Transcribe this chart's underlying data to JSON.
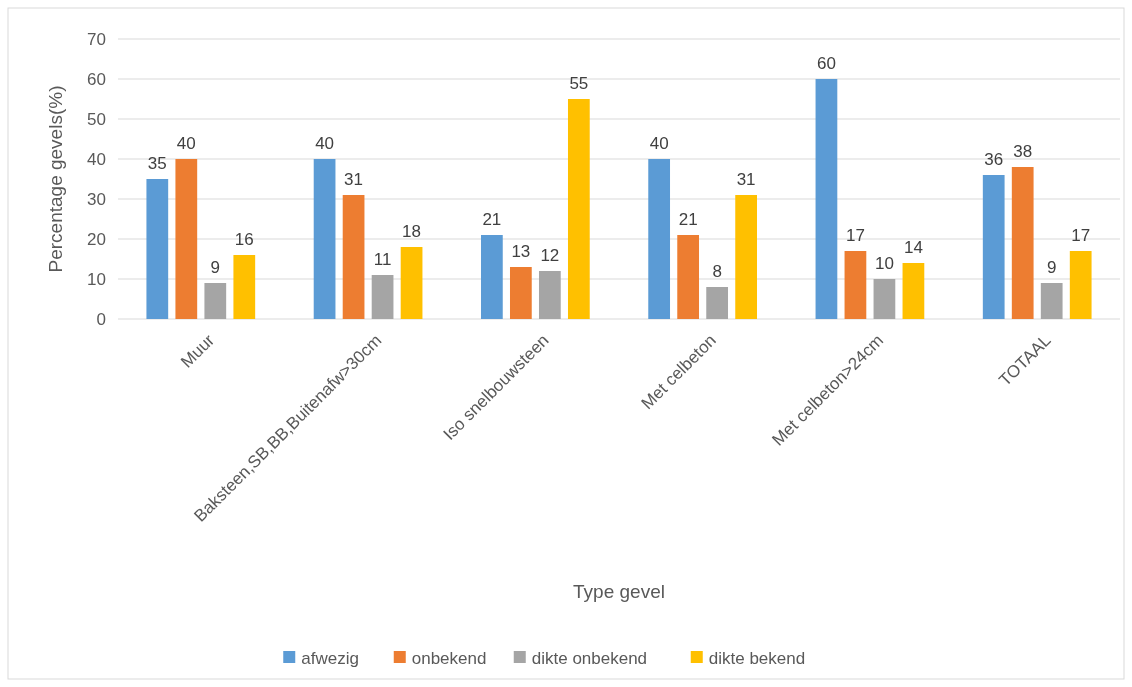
{
  "chart_data": {
    "type": "bar",
    "xlabel": "Type gevel",
    "ylabel": "Percentage gevels(%)",
    "categories": [
      "Muur",
      "Baksteen,SB,BB,Buitenafw>30cm",
      "Iso snelbouwsteen",
      "Met celbeton",
      "Met celbeton>24cm",
      "TOTAAL"
    ],
    "series": [
      {
        "name": "afwezig",
        "color": "#5b9bd5",
        "values": [
          35,
          40,
          21,
          40,
          60,
          36
        ]
      },
      {
        "name": "onbekend",
        "color": "#ed7d31",
        "values": [
          40,
          31,
          13,
          21,
          17,
          38
        ]
      },
      {
        "name": "dikte onbekend",
        "color": "#a5a5a5",
        "values": [
          9,
          11,
          12,
          8,
          10,
          9
        ]
      },
      {
        "name": "dikte bekend",
        "color": "#ffc000",
        "values": [
          16,
          18,
          55,
          31,
          14,
          17
        ]
      }
    ],
    "ylim": [
      0,
      70
    ],
    "yticks": [
      0,
      10,
      20,
      30,
      40,
      50,
      60,
      70
    ],
    "grid": "y",
    "data_labels": true,
    "legend": "bottom"
  }
}
